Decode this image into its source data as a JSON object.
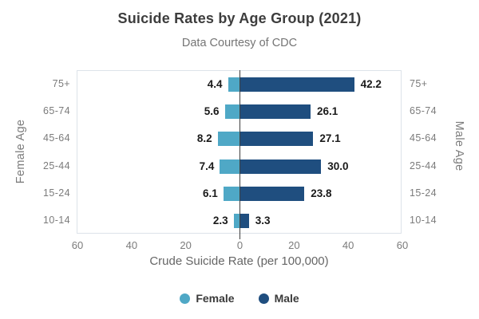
{
  "chart_data": {
    "type": "bar",
    "orientation": "diverging-horizontal",
    "title": "Suicide Rates by Age Group (2021)",
    "subtitle": "Data Courtesy of CDC",
    "xlabel": "Crude Suicide Rate (per 100,000)",
    "left_axis_label": "Female Age",
    "right_axis_label": "Male Age",
    "categories": [
      "75+",
      "65-74",
      "45-64",
      "25-44",
      "15-24",
      "10-14"
    ],
    "series": [
      {
        "name": "Female",
        "side": "left",
        "color": "#4fa8c6",
        "values": [
          4.4,
          5.6,
          8.2,
          7.4,
          6.1,
          2.3
        ]
      },
      {
        "name": "Male",
        "side": "right",
        "color": "#1f4e7f",
        "values": [
          42.2,
          26.1,
          27.1,
          30.0,
          23.8,
          3.3
        ]
      }
    ],
    "value_format_decimals": 1,
    "x_tick_values": [
      -60,
      -40,
      -20,
      0,
      20,
      40,
      60
    ],
    "x_tick_labels": [
      "60",
      "40",
      "20",
      "0",
      "20",
      "40",
      "60"
    ],
    "xlim": [
      -60,
      60
    ],
    "grid": false,
    "legend_position": "bottom",
    "colors": {
      "center_line": "#3f3f3f",
      "plot_border": "#dde3e9",
      "value_text": "#1a1a1a",
      "axis_text": "#7b7b7b"
    }
  }
}
